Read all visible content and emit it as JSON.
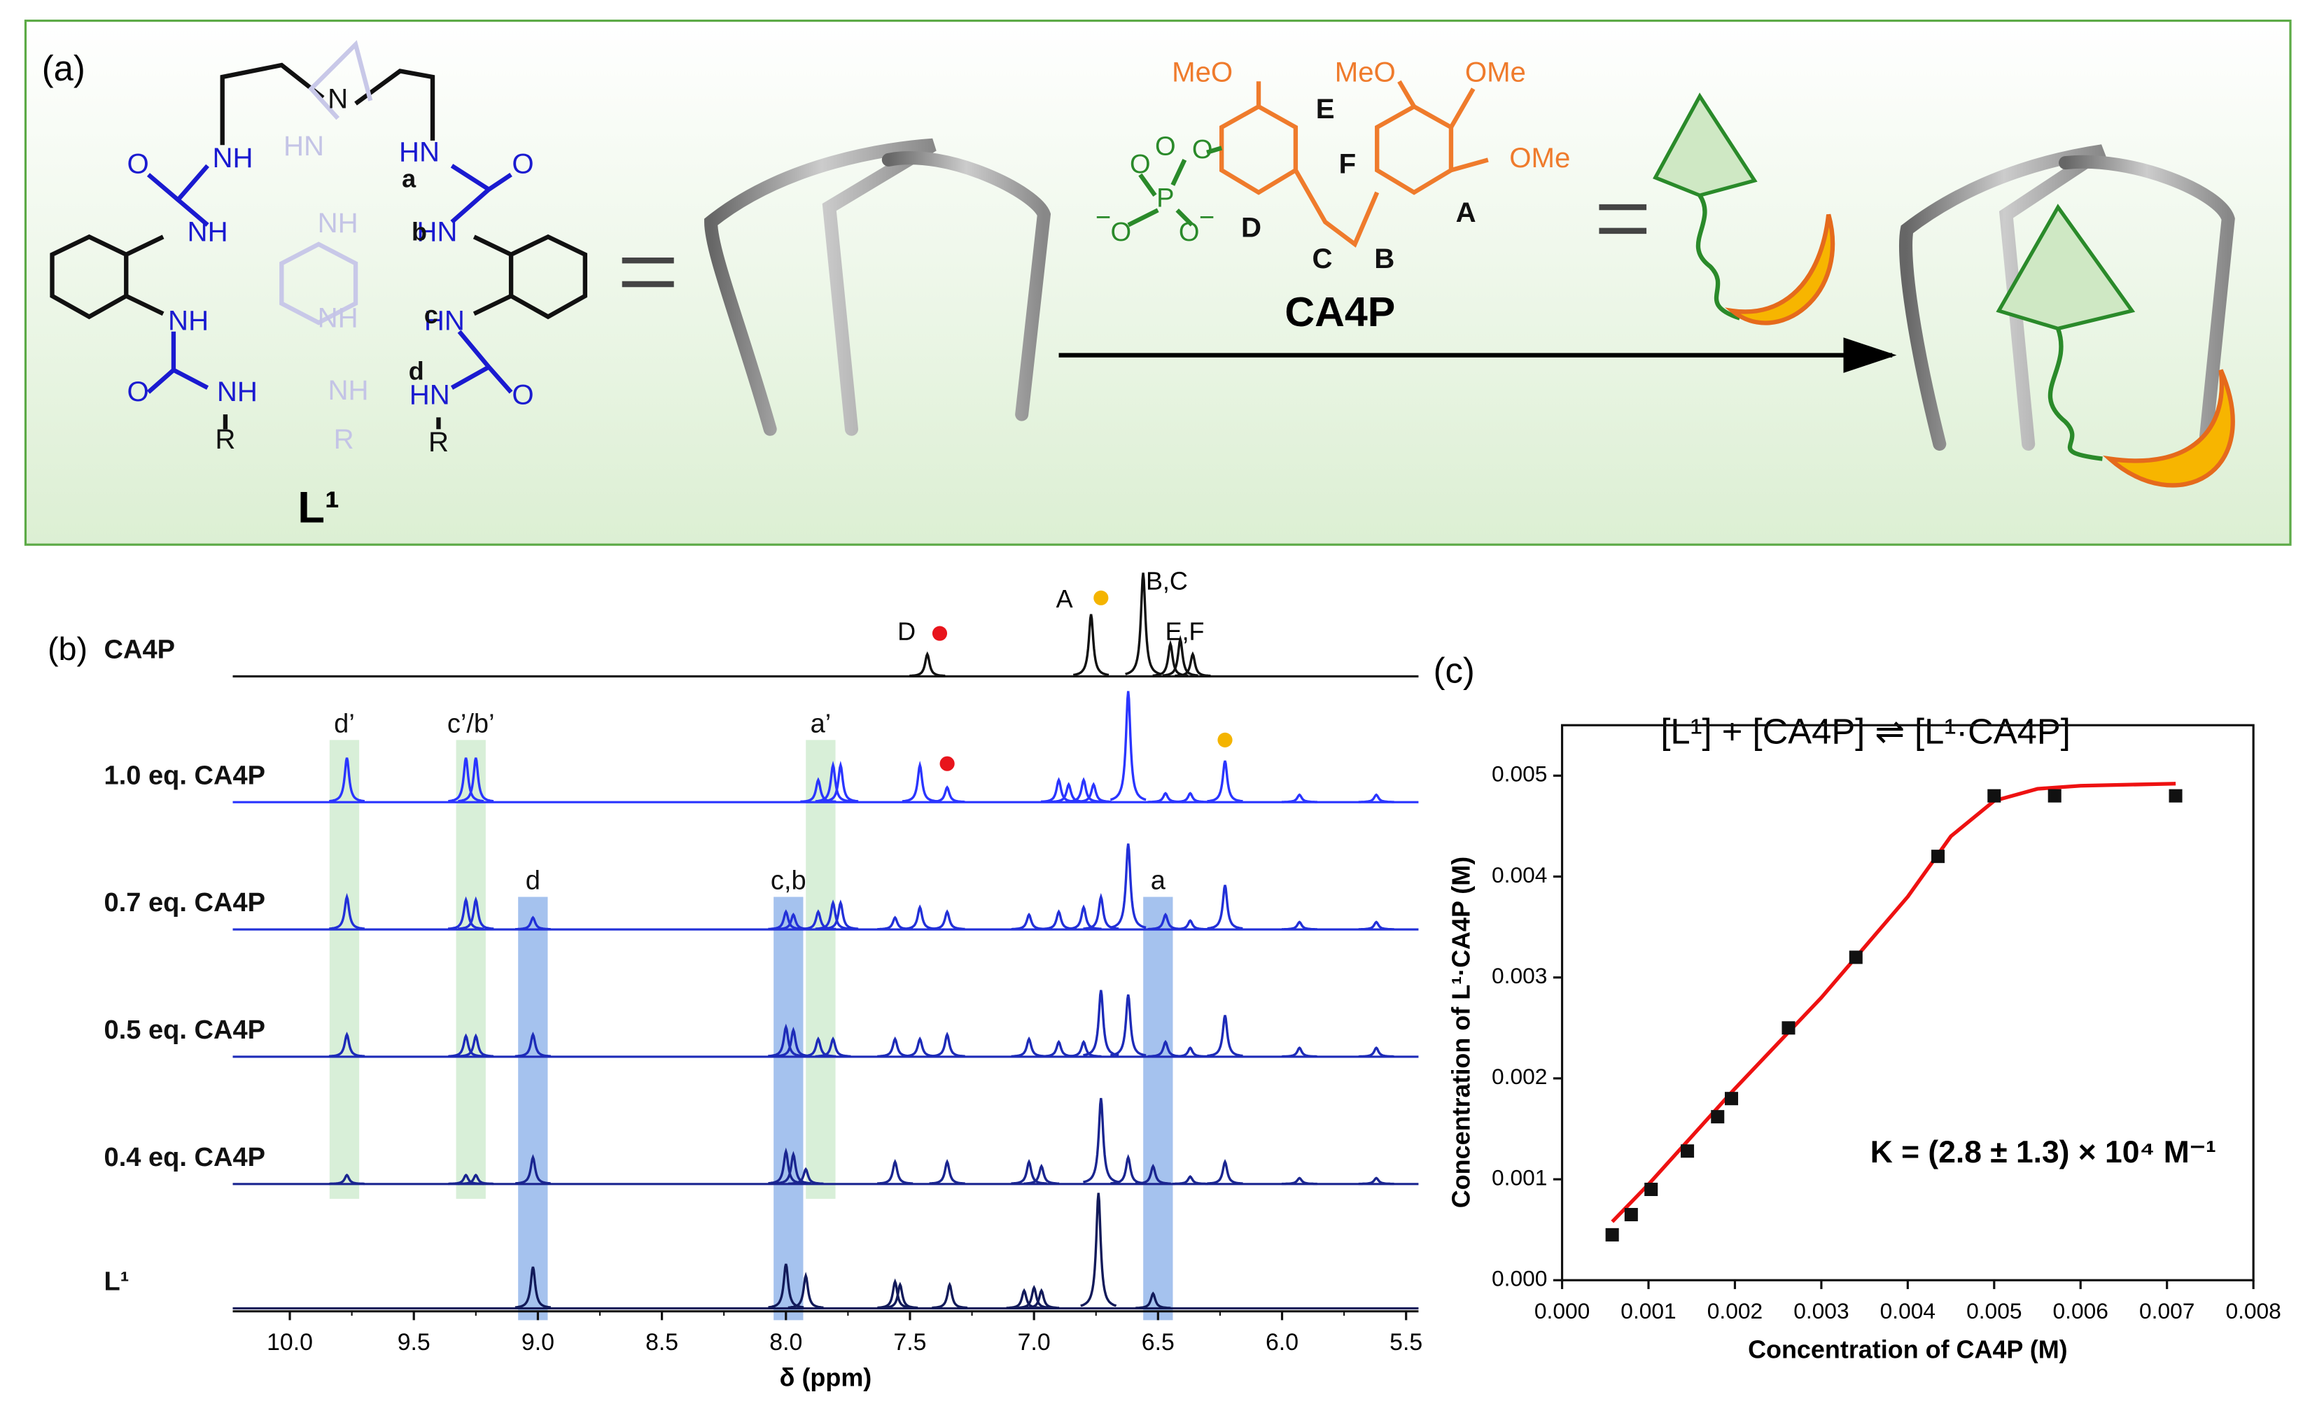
{
  "panel_a": {
    "label": "(a)",
    "ligand_name": "L¹",
    "guest_name": "CA4P",
    "ligand_atoms": [
      "N",
      "NH",
      "O",
      "NH",
      "NH",
      "O",
      "NH",
      "R",
      "HN",
      "O",
      "HN",
      "HN",
      "HN",
      "O",
      "R",
      "HN",
      "NH",
      "NH",
      "NH",
      "R"
    ],
    "proton_labels": [
      "a",
      "b",
      "c",
      "d"
    ],
    "guest_labels": [
      "MeO",
      "MeO",
      "OMe",
      "OMe",
      "E",
      "F",
      "D",
      "C",
      "B",
      "A"
    ],
    "phosphate_atoms": [
      "O",
      "O",
      "P",
      "O",
      "O",
      "O",
      "−",
      "−"
    ]
  },
  "chart_data": [
    {
      "type": "spectrum",
      "panel_label": "(b)",
      "xlabel": "δ (ppm)",
      "xlim": [
        10.23,
        5.45
      ],
      "xticks": [
        {
          "value": 10,
          "label": "10.0"
        },
        9.5,
        {
          "value": 9,
          "label": "9.0"
        },
        8.5,
        {
          "value": 8,
          "label": "8.0"
        },
        7.5,
        {
          "value": 7,
          "label": "7.0"
        },
        6.5,
        {
          "value": 6,
          "label": "6.0"
        },
        5.5
      ],
      "series": [
        {
          "name": "CA4P",
          "color": "#111111",
          "x": [
            7.43,
            6.77,
            6.56,
            6.45,
            6.41,
            6.36
          ],
          "values": [
            15,
            42,
            70,
            22,
            25,
            15
          ]
        },
        {
          "name": "1.0 eq. CA4P",
          "color": "#2a35ff",
          "x": [
            9.77,
            9.29,
            9.25,
            7.87,
            7.81,
            7.78,
            7.46,
            7.35,
            6.9,
            6.86,
            6.8,
            6.76,
            6.62,
            6.47,
            6.37,
            6.23,
            5.93,
            5.62
          ],
          "values": [
            30,
            30,
            30,
            15,
            25,
            25,
            25,
            10,
            15,
            12,
            15,
            12,
            75,
            6,
            6,
            28,
            5,
            5
          ]
        },
        {
          "name": "0.7 eq. CA4P",
          "color": "#2230d8",
          "x": [
            9.77,
            9.29,
            9.25,
            9.02,
            8.0,
            7.97,
            7.87,
            7.81,
            7.78,
            7.56,
            7.46,
            7.35,
            7.02,
            6.9,
            6.8,
            6.73,
            6.62,
            6.47,
            6.37,
            6.23,
            5.93,
            5.62
          ],
          "values": [
            22,
            20,
            20,
            8,
            12,
            10,
            12,
            18,
            18,
            8,
            15,
            12,
            10,
            12,
            15,
            22,
            58,
            10,
            6,
            30,
            5,
            5
          ]
        },
        {
          "name": "0.5 eq. CA4P",
          "color": "#1d2bb8",
          "x": [
            9.77,
            9.29,
            9.25,
            9.02,
            8.0,
            7.97,
            7.87,
            7.81,
            7.56,
            7.46,
            7.35,
            7.02,
            6.9,
            6.8,
            6.73,
            6.62,
            6.47,
            6.37,
            6.23,
            5.93,
            5.62
          ],
          "values": [
            15,
            14,
            14,
            15,
            20,
            18,
            12,
            12,
            12,
            12,
            15,
            12,
            10,
            10,
            45,
            42,
            10,
            6,
            28,
            6,
            6
          ]
        },
        {
          "name": "0.4 eq. CA4P",
          "color": "#1a2590",
          "x": [
            9.77,
            9.29,
            9.25,
            9.02,
            8.0,
            7.97,
            7.92,
            7.56,
            7.35,
            7.02,
            6.97,
            6.73,
            6.62,
            6.52,
            6.37,
            6.23,
            5.93,
            5.62
          ],
          "values": [
            6,
            6,
            6,
            18,
            22,
            20,
            10,
            15,
            15,
            15,
            12,
            58,
            18,
            12,
            5,
            15,
            4,
            4
          ]
        },
        {
          "name": "L¹",
          "color": "#121a5a",
          "x": [
            9.02,
            8.0,
            7.92,
            7.56,
            7.54,
            7.34,
            7.04,
            7.0,
            6.97,
            6.74,
            6.52
          ],
          "values": [
            28,
            30,
            22,
            18,
            16,
            16,
            12,
            14,
            12,
            78,
            10
          ]
        }
      ],
      "peak_labels": [
        {
          "text": "D",
          "x": 7.43
        },
        {
          "text": "A",
          "x": 6.77
        },
        {
          "text": "B,C",
          "x": 6.56
        },
        {
          "text": "E,F",
          "x": 6.41
        }
      ],
      "dots": [
        {
          "x": 7.38,
          "color": "#e8141c"
        },
        {
          "x": 6.73,
          "color": "#f4b400"
        },
        {
          "x": 7.35,
          "color": "#e8141c"
        },
        {
          "x": 6.23,
          "color": "#f4b400"
        }
      ],
      "highlights": [
        {
          "text": "d’",
          "x": 9.78,
          "color": "#8fd08f"
        },
        {
          "text": "c’/b’",
          "x": 9.27,
          "color": "#8fd08f"
        },
        {
          "text": "a’",
          "x": 7.86,
          "color": "#8fd08f"
        },
        {
          "text": "d",
          "x": 9.02,
          "color": "#5b8fe0"
        },
        {
          "text": "c,b",
          "x": 7.99,
          "color": "#5b8fe0"
        },
        {
          "text": "a",
          "x": 6.5,
          "color": "#5b8fe0"
        }
      ]
    },
    {
      "type": "scatter",
      "panel_label": "(c)",
      "title": "[L¹] + [CA4P] ⇌ [L¹·CA4P]",
      "annotation": "K = (2.8 ± 1.3) × 10⁴ M⁻¹",
      "xlabel": "Concentration of CA4P (M)",
      "ylabel": "Concentration of L¹·CA4P (M)",
      "xlim": [
        0,
        0.008
      ],
      "ylim": [
        0,
        0.0055
      ],
      "xticks": [
        {
          "value": 0,
          "label": "0.000"
        },
        {
          "value": 0.001,
          "label": "0.001"
        },
        {
          "value": 0.002,
          "label": "0.002"
        },
        {
          "value": 0.003,
          "label": "0.003"
        },
        {
          "value": 0.004,
          "label": "0.004"
        },
        {
          "value": 0.005,
          "label": "0.005"
        },
        {
          "value": 0.006,
          "label": "0.006"
        },
        {
          "value": 0.007,
          "label": "0.007"
        },
        {
          "value": 0.008,
          "label": "0.008"
        }
      ],
      "yticks": [
        {
          "value": 0,
          "label": "0.000"
        },
        0.001,
        0.002,
        0.003,
        0.004,
        0.005
      ],
      "color": "#111111",
      "x": [
        0.00058,
        0.0008,
        0.00103,
        0.00145,
        0.0018,
        0.00196,
        0.00262,
        0.0034,
        0.00435,
        0.005,
        0.0057,
        0.0071
      ],
      "values": [
        0.00045,
        0.00065,
        0.0009,
        0.00128,
        0.00162,
        0.0018,
        0.0025,
        0.0032,
        0.0042,
        0.0048,
        0.0048,
        0.0048
      ],
      "fit": {
        "color": "#ee1111",
        "x": [
          0.00058,
          0.001,
          0.002,
          0.003,
          0.004,
          0.0045,
          0.005,
          0.0055,
          0.006,
          0.0071
        ],
        "values": [
          0.00058,
          0.00095,
          0.0019,
          0.0028,
          0.0038,
          0.0044,
          0.00475,
          0.00487,
          0.0049,
          0.00492
        ]
      }
    }
  ]
}
